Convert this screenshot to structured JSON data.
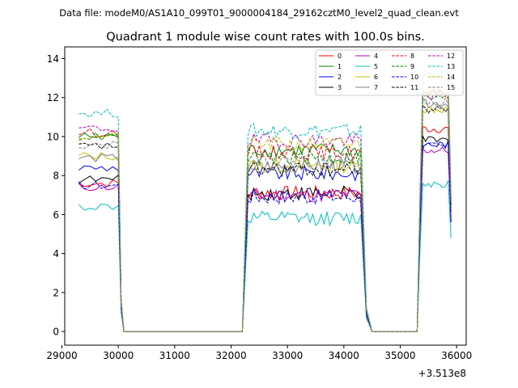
{
  "chart_data": {
    "type": "line",
    "suptitle": "Data file: modeM0/AS1A10_099T01_9000004184_29162cztM0_level2_quad_clean.evt",
    "title": "Quadrant 1 module wise count rates with 100.0s bins.",
    "xlabel": "",
    "ylabel": "",
    "x_offset_label": "+3.513e8",
    "xlim": [
      29050,
      36170
    ],
    "ylim": [
      -0.7,
      14.6
    ],
    "xticks": [
      29000,
      30000,
      31000,
      32000,
      33000,
      34000,
      35000,
      36000
    ],
    "yticks": [
      0,
      2,
      4,
      6,
      8,
      10,
      12,
      14
    ],
    "xtick_labels": [
      "29000",
      "30000",
      "31000",
      "32000",
      "33000",
      "34000",
      "35000",
      "36000"
    ],
    "ytick_labels": [
      "0",
      "2",
      "4",
      "6",
      "8",
      "10",
      "12",
      "14"
    ],
    "grid": false,
    "legend_position": "top-right",
    "legend_columns": 4,
    "x_segments": {
      "seg1": {
        "start": 29300,
        "end": 30000
      },
      "gap1": {
        "start": 30100,
        "end": 32200
      },
      "seg2": {
        "start": 32300,
        "end": 34300
      },
      "gap2": {
        "start": 34500,
        "end": 35300
      },
      "seg3": {
        "start": 35400,
        "end": 35900
      }
    },
    "series": [
      {
        "name": "0",
        "color": "#ff0000",
        "dash": "solid",
        "level1": 7.6,
        "level2": 7.1,
        "level3": 10.4,
        "end": 6.2
      },
      {
        "name": "1",
        "color": "#008000",
        "dash": "solid",
        "level1": 10.0,
        "level2": 9.3,
        "level3": 12.2,
        "end": 6.8
      },
      {
        "name": "2",
        "color": "#0000ff",
        "dash": "solid",
        "level1": 8.4,
        "level2": 8.1,
        "level3": 9.6,
        "end": 5.6
      },
      {
        "name": "3",
        "color": "#000000",
        "dash": "solid",
        "level1": 7.8,
        "level2": 7.1,
        "level3": 9.8,
        "end": 5.8
      },
      {
        "name": "4",
        "color": "#bf00bf",
        "dash": "solid",
        "level1": 7.4,
        "level2": 7.0,
        "level3": 9.3,
        "end": 5.7
      },
      {
        "name": "5",
        "color": "#00bfbf",
        "dash": "solid",
        "level1": 6.4,
        "level2": 5.8,
        "level3": 7.6,
        "end": 4.8
      },
      {
        "name": "6",
        "color": "#bfbf00",
        "dash": "solid",
        "level1": 9.0,
        "level2": 8.5,
        "level3": 11.4,
        "end": 6.4
      },
      {
        "name": "7",
        "color": "#808080",
        "dash": "solid",
        "level1": 8.9,
        "level2": 8.5,
        "level3": 11.7,
        "end": 6.3
      },
      {
        "name": "8",
        "color": "#ff0000",
        "dash": "dashed",
        "level1": 10.2,
        "level2": 9.2,
        "level3": 12.2,
        "end": 6.9
      },
      {
        "name": "9",
        "color": "#008000",
        "dash": "dashed",
        "level1": 10.0,
        "level2": 8.9,
        "level3": 12.0,
        "end": 6.7
      },
      {
        "name": "10",
        "color": "#0000ff",
        "dash": "dashed",
        "level1": 7.5,
        "level2": 6.9,
        "level3": 9.5,
        "end": 5.6
      },
      {
        "name": "11",
        "color": "#000000",
        "dash": "dashed",
        "level1": 9.5,
        "level2": 8.3,
        "level3": 11.4,
        "end": 6.5
      },
      {
        "name": "12",
        "color": "#bf00bf",
        "dash": "dashed",
        "level1": 10.4,
        "level2": 9.8,
        "level3": 12.1,
        "end": 6.8
      },
      {
        "name": "13",
        "color": "#00bfbf",
        "dash": "dashed",
        "level1": 11.2,
        "level2": 10.3,
        "level3": 13.2,
        "end": 7.4
      },
      {
        "name": "14",
        "color": "#bfbf00",
        "dash": "dashed",
        "level1": 10.0,
        "level2": 9.6,
        "level3": 12.3,
        "end": 6.9
      },
      {
        "name": "15",
        "color": "#808080",
        "dash": "dashed",
        "level1": 9.6,
        "level2": 8.7,
        "level3": 11.8,
        "end": 6.6
      }
    ]
  }
}
